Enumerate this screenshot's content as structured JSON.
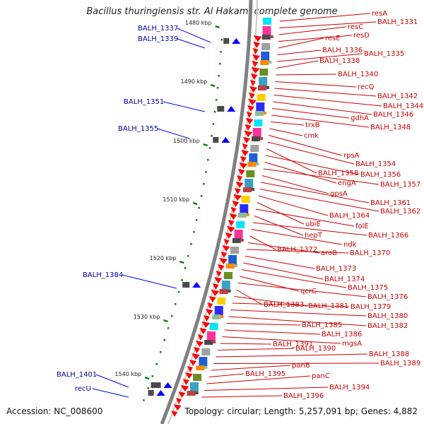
{
  "title": "Bacillus thuringiensis str. Al Hakam, complete genome",
  "footer": {
    "accession_label": "Accession: NC_008600",
    "topology_label": "Topology: circular; Length: 5,257,091 bp; Genes: 4,882"
  },
  "colors": {
    "backbone": "#808080",
    "gene_arrow": "#ff0000",
    "tick": "#008000",
    "right_label": "#cc0000",
    "left_label": "#0000aa",
    "left_gene": "#0000ff"
  },
  "kbp_ticks": [
    "1480 kbp",
    "1490 kbp",
    "1500 kbp",
    "1510 kbp",
    "1520 kbp",
    "1530 kbp",
    "1540 kbp"
  ],
  "left_genes": [
    "BALH_1337",
    "BALH_1339",
    "BALH_1351",
    "BALH_1355",
    "BALH_1384",
    "BALH_1401",
    "recU"
  ],
  "right_genes": [
    "resA",
    "BALH_1331",
    "resC",
    "resD",
    "resE",
    "BALH_1336",
    "BALH_1335",
    "BALH_1338",
    "BALH_1340",
    "recQ",
    "BALH_1342",
    "BALH_1344",
    "BALH_1346",
    "gdhA",
    "BALH_1348",
    "trxB",
    "cmk",
    "rpsA",
    "BALH_1354",
    "BALH_1358",
    "BALH_1356",
    "engA",
    "BALH_1357",
    "gpsA",
    "BALH_1361",
    "BALH_1362",
    "BALH_1364",
    "ubiE",
    "folE",
    "hepT",
    "BALH_1366",
    "ndk",
    "BALH_1372",
    "aroB",
    "BALH_1370",
    "BALH_1373",
    "BALH_1374",
    "BALH_1375",
    "qcrC",
    "BALH_1376",
    "BALH_1383",
    "BALH_1381",
    "BALH_1379",
    "BALH_1380",
    "BALH_1382",
    "BALH_1385",
    "BALH_1386",
    "mgsA",
    "BALH_1391",
    "BALH_1390",
    "BALH_1388",
    "BALH_1389",
    "panB",
    "BALH_1395",
    "panC",
    "BALH_1394",
    "BALH_1396"
  ]
}
